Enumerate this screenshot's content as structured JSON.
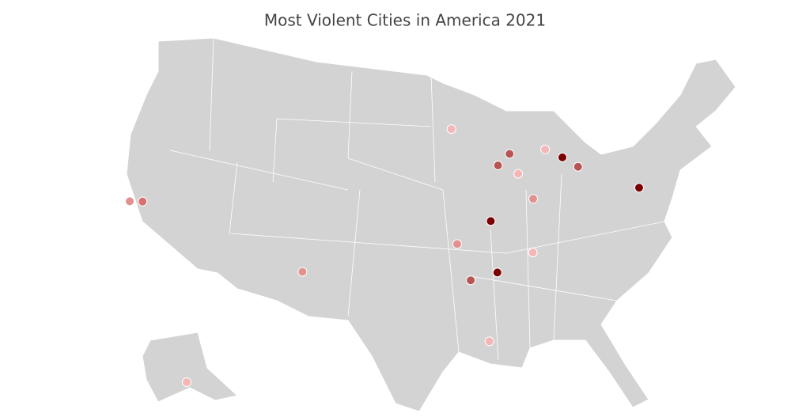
{
  "chart_data": {
    "type": "map",
    "title": "Most Violent Cities in America 2021",
    "points": [
      {
        "lon": -122.4,
        "lat": 37.8,
        "color": "#e39090"
      },
      {
        "lon": -121.3,
        "lat": 38.0,
        "color": "#d96f6f"
      },
      {
        "lon": -76.6,
        "lat": 39.3,
        "color": "#7b0000"
      },
      {
        "lon": -83.0,
        "lat": 42.3,
        "color": "#7b0000"
      },
      {
        "lon": -90.0,
        "lat": 35.1,
        "color": "#7b0000"
      },
      {
        "lon": -90.2,
        "lat": 38.6,
        "color": "#7b0000"
      },
      {
        "lon": -106.6,
        "lat": 35.1,
        "color": "#e39090"
      },
      {
        "lon": -93.3,
        "lat": 44.98,
        "color": "#f4b6b6"
      },
      {
        "lon": -87.9,
        "lat": 43.0,
        "color": "#b85454"
      },
      {
        "lon": -89.1,
        "lat": 42.3,
        "color": "#b85454"
      },
      {
        "lon": -87.3,
        "lat": 41.6,
        "color": "#f4b6b6"
      },
      {
        "lon": -84.5,
        "lat": 43.0,
        "color": "#f4b6b6"
      },
      {
        "lon": -81.7,
        "lat": 41.5,
        "color": "#b85454"
      },
      {
        "lon": -86.2,
        "lat": 39.8,
        "color": "#e39090"
      },
      {
        "lon": -93.3,
        "lat": 37.2,
        "color": "#e39090"
      },
      {
        "lon": -86.8,
        "lat": 36.2,
        "color": "#f4b6b6"
      },
      {
        "lon": -92.3,
        "lat": 34.7,
        "color": "#b85454"
      },
      {
        "lon": -91.1,
        "lat": 30.5,
        "color": "#f4b6b6"
      },
      {
        "lon": -149.9,
        "lat": 61.2,
        "color": "#f4b6b6"
      }
    ]
  }
}
